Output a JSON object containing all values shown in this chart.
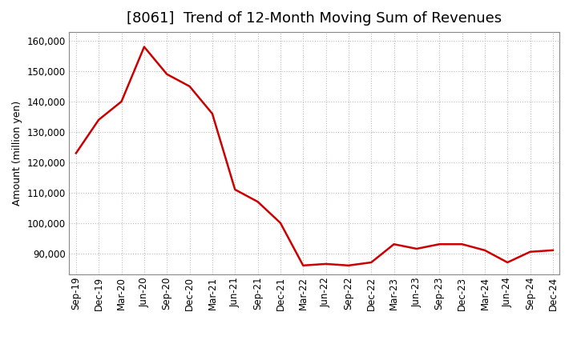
{
  "title": "[8061]  Trend of 12-Month Moving Sum of Revenues",
  "ylabel": "Amount (million yen)",
  "line_color": "#cc0000",
  "background_color": "#ffffff",
  "plot_bg_color": "#ffffff",
  "grid_color": "#bbbbbb",
  "ylim": [
    83000,
    163000
  ],
  "yticks": [
    90000,
    100000,
    110000,
    120000,
    130000,
    140000,
    150000,
    160000
  ],
  "x_labels": [
    "Sep-19",
    "Dec-19",
    "Mar-20",
    "Jun-20",
    "Sep-20",
    "Dec-20",
    "Mar-21",
    "Jun-21",
    "Sep-21",
    "Dec-21",
    "Mar-22",
    "Jun-22",
    "Sep-22",
    "Dec-22",
    "Mar-23",
    "Jun-23",
    "Sep-23",
    "Dec-23",
    "Mar-24",
    "Jun-24",
    "Sep-24",
    "Dec-24"
  ],
  "values": [
    123000,
    134000,
    140000,
    158000,
    149000,
    145000,
    136000,
    111000,
    107000,
    100000,
    86000,
    86500,
    86000,
    87000,
    93000,
    91500,
    93000,
    93000,
    91000,
    87000,
    90500,
    91000
  ],
  "figsize": [
    7.2,
    4.4
  ],
  "dpi": 100,
  "title_fontsize": 13,
  "ylabel_fontsize": 9,
  "tick_fontsize": 8.5
}
